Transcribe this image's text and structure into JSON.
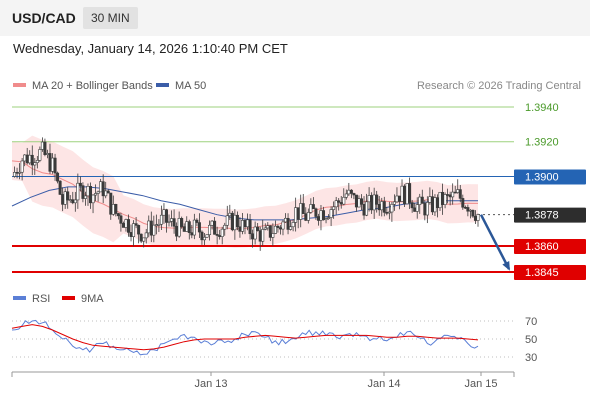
{
  "header": {
    "pair": "USD/CAD",
    "timeframe": "30 MIN"
  },
  "datetime": "Wednesday, January 14, 2026 1:10:40 PM CET",
  "legend": {
    "ma20_label": "MA 20 + Bollinger Bands",
    "ma50_label": "MA 50",
    "rsi_label": "RSI",
    "ma9_label": "9MA"
  },
  "credit": "Research © 2026 Trading Central",
  "colors": {
    "resistance": "#9ed27e",
    "support": "#e00000",
    "pivot": "#2464b4",
    "last_price": "#2d2d2d",
    "ma20": "#f08c8c",
    "bollinger_fill": "#fde2e2",
    "ma50": "#3b5da8",
    "candle": "#3a3a3a",
    "rsi": "#5b7fd6",
    "rsi_ma9": "#e00000",
    "arrow": "#2b5797"
  },
  "chart_data": [
    {
      "type": "candlestick",
      "y_range": [
        1.383,
        1.395
      ],
      "x_ticks": [
        "Jan 13",
        "Jan 14",
        "Jan 15"
      ],
      "levels": [
        {
          "label": "1.3940",
          "value": 1.394,
          "kind": "resistance"
        },
        {
          "label": "1.3920",
          "value": 1.392,
          "kind": "resistance"
        },
        {
          "label": "1.3900",
          "value": 1.39,
          "kind": "pivot"
        },
        {
          "label": "1.3878",
          "value": 1.3878,
          "kind": "last_price"
        },
        {
          "label": "1.3860",
          "value": 1.386,
          "kind": "support"
        },
        {
          "label": "1.3845",
          "value": 1.3845,
          "kind": "support"
        }
      ],
      "close_series": [
        1.39,
        1.391,
        1.3912,
        1.3914,
        1.3906,
        1.3885,
        1.3888,
        1.3893,
        1.389,
        1.3893,
        1.388,
        1.3875,
        1.387,
        1.3867,
        1.3872,
        1.3875,
        1.3872,
        1.3868,
        1.387,
        1.3868,
        1.387,
        1.3872,
        1.3875,
        1.387,
        1.3868,
        1.3866,
        1.387,
        1.3874,
        1.388,
        1.3877,
        1.388,
        1.388,
        1.3884,
        1.389,
        1.3885,
        1.3883,
        1.3885,
        1.3884,
        1.389,
        1.389,
        1.3883,
        1.3882,
        1.3885,
        1.3887,
        1.3889,
        1.3884,
        1.3878
      ],
      "ma50": [
        1.3883,
        1.3888,
        1.3892,
        1.3894,
        1.3894,
        1.3893,
        1.3891,
        1.3889,
        1.3886,
        1.3884,
        1.3881,
        1.3878,
        1.3876,
        1.3875,
        1.3875,
        1.3875,
        1.3876,
        1.3877,
        1.3879,
        1.3881,
        1.3882,
        1.3884,
        1.3885,
        1.3886,
        1.3886,
        1.3886
      ],
      "projection": {
        "from": 1.3878,
        "to": 1.3845
      }
    },
    {
      "type": "line",
      "name": "RSI",
      "y_ticks": [
        70,
        50,
        30
      ],
      "y_range": [
        20,
        80
      ],
      "rsi": [
        60,
        65,
        70,
        68,
        60,
        50,
        42,
        38,
        40,
        45,
        42,
        38,
        35,
        33,
        38,
        45,
        50,
        55,
        52,
        48,
        45,
        46,
        50,
        55,
        58,
        52,
        48,
        45,
        50,
        55,
        58,
        54,
        52,
        55,
        57,
        53,
        50,
        48,
        52,
        58,
        52,
        45,
        50,
        54,
        50,
        45,
        42
      ],
      "ma9": [
        62,
        64,
        66,
        64,
        60,
        55,
        50,
        46,
        43,
        42,
        41,
        40,
        39,
        38,
        39,
        41,
        44,
        47,
        49,
        50,
        50,
        50,
        50,
        52,
        53,
        54,
        53,
        52,
        51,
        52,
        53,
        54,
        54,
        54,
        54,
        54,
        53,
        52,
        52,
        53,
        53,
        52,
        51,
        51,
        51,
        50,
        49
      ]
    }
  ]
}
